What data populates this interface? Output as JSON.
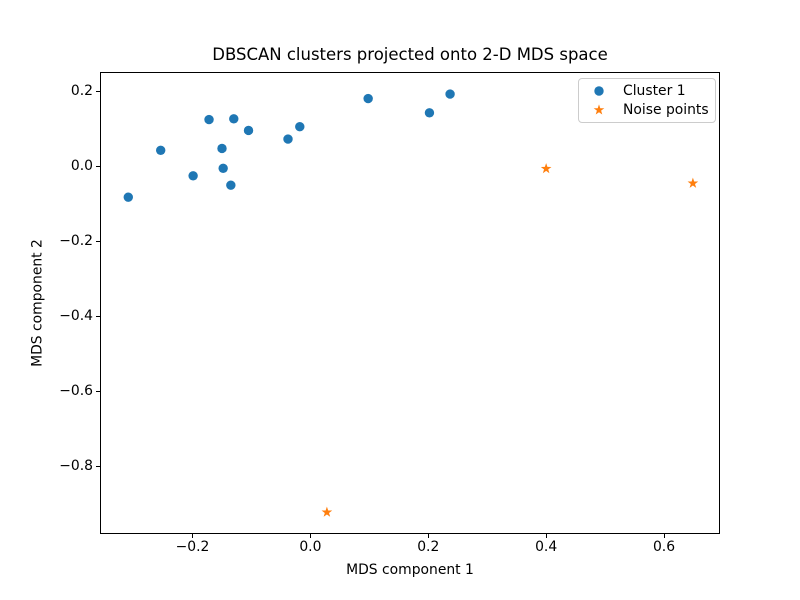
{
  "chart_data": {
    "type": "scatter",
    "title": "DBSCAN clusters projected onto 2-D MDS space",
    "xlabel": "MDS component 1",
    "ylabel": "MDS component 2",
    "xlim": [
      -0.357,
      0.695
    ],
    "ylim": [
      -0.98,
      0.253
    ],
    "xticks": [
      -0.2,
      0.0,
      0.2,
      0.4,
      0.6
    ],
    "xtick_labels": [
      "−0.2",
      "0.0",
      "0.2",
      "0.4",
      "0.6"
    ],
    "yticks": [
      0.2,
      0.0,
      -0.2,
      -0.4,
      -0.6,
      -0.8
    ],
    "ytick_labels": [
      "0.2",
      "0.0",
      "−0.2",
      "−0.4",
      "−0.6",
      "−0.8"
    ],
    "grid": false,
    "legend_position": "upper right",
    "background_color": "#ffffff",
    "spine_color": "#000000",
    "legend_border_color": "#cccccc",
    "series": [
      {
        "name": "Cluster 1",
        "marker": "circle",
        "color": "#1f77b4",
        "points": [
          [
            -0.309,
            -0.081
          ],
          [
            -0.254,
            0.044
          ],
          [
            -0.199,
            -0.024
          ],
          [
            -0.172,
            0.126
          ],
          [
            -0.15,
            0.049
          ],
          [
            -0.148,
            -0.004
          ],
          [
            -0.135,
            -0.049
          ],
          [
            -0.13,
            0.128
          ],
          [
            -0.105,
            0.097
          ],
          [
            -0.038,
            0.074
          ],
          [
            -0.018,
            0.107
          ],
          [
            0.098,
            0.182
          ],
          [
            0.202,
            0.144
          ],
          [
            0.237,
            0.194
          ]
        ]
      },
      {
        "name": "Noise points",
        "marker": "star",
        "color": "#ff7f0e",
        "points": [
          [
            0.4,
            -0.005
          ],
          [
            0.649,
            -0.044
          ],
          [
            0.028,
            -0.922
          ]
        ]
      }
    ]
  }
}
